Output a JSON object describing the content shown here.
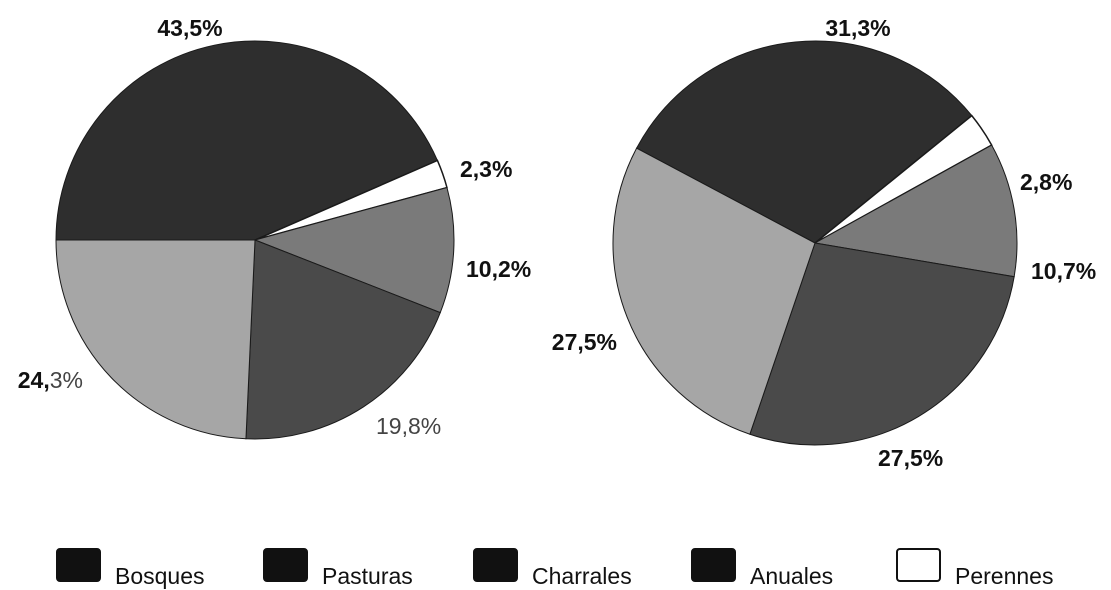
{
  "colors": {
    "Bosques": "#2e2e2e",
    "Pasturas": "#a6a6a6",
    "Charrales": "#4a4a4a",
    "Anuales": "#7a7a7a",
    "Perennes": "#ffffff",
    "legend_swatch": "#111111",
    "outline": "#1a1a1a"
  },
  "chart_data": [
    {
      "type": "pie",
      "slices": [
        {
          "name": "Bosques",
          "label": "43,5%",
          "value": 43.5
        },
        {
          "name": "Perennes",
          "label": "2,3%",
          "value": 2.3
        },
        {
          "name": "Anuales",
          "label": "10,2%",
          "value": 10.2
        },
        {
          "name": "Charrales",
          "label": "19,8%",
          "value": 19.8
        },
        {
          "name": "Pasturas",
          "label": "24,3%",
          "value": 24.3
        }
      ]
    },
    {
      "type": "pie",
      "slices": [
        {
          "name": "Bosques",
          "label": "31,3%",
          "value": 31.3
        },
        {
          "name": "Perennes",
          "label": "2,8%",
          "value": 2.8
        },
        {
          "name": "Anuales",
          "label": "10,7%",
          "value": 10.7
        },
        {
          "name": "Charrales",
          "label": "27,5%",
          "value": 27.5
        },
        {
          "name": "Pasturas",
          "label": "27,5%",
          "value": 27.5
        }
      ]
    }
  ],
  "legend": [
    {
      "name": "Bosques",
      "label": "Bosques"
    },
    {
      "name": "Pasturas",
      "label": "Pasturas"
    },
    {
      "name": "Charrales",
      "label": "Charrales"
    },
    {
      "name": "Anuales",
      "label": "Anuales"
    },
    {
      "name": "Perennes",
      "label": "Perennes"
    }
  ]
}
